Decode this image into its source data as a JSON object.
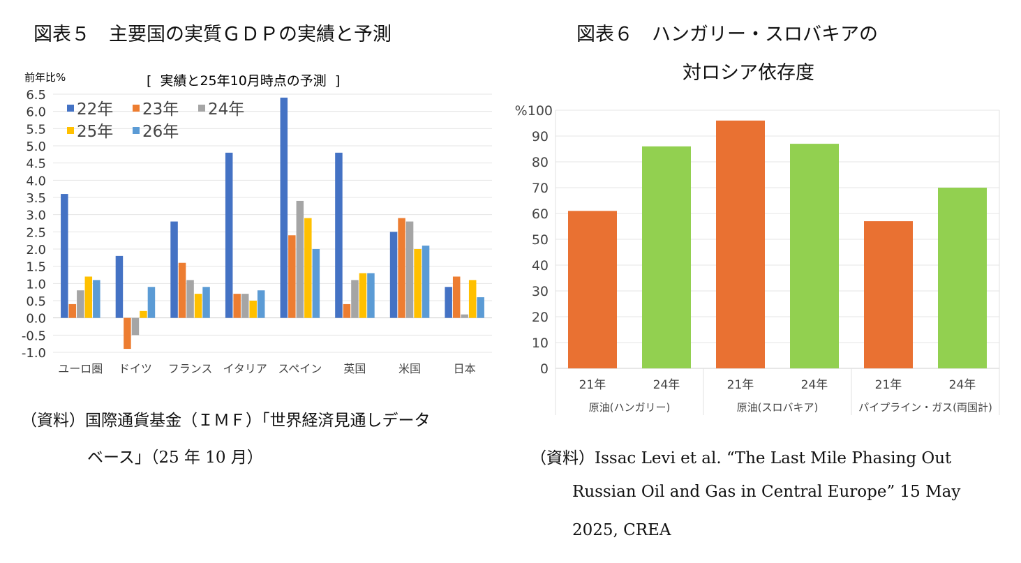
{
  "left": {
    "title": "図表５　主要国の実質ＧＤＰの実績と予測",
    "source_lines": [
      "（資料）国際通貨基金（ＩＭＦ）「世界経済見通しデータ",
      "ベース」（25 年 10 月）"
    ]
  },
  "right": {
    "title_lines": [
      "図表６　ハンガリー・スロバキアの",
      "対ロシア依存度"
    ],
    "source_lines": [
      "（資料）Issac Levi et al. “The Last Mile Phasing Out",
      "Russian Oil and Gas in Central Europe” 15 May",
      "2025, CREA"
    ]
  },
  "chart_data": [
    {
      "type": "bar",
      "title": "",
      "subtitle": "[ 実績と25年10月時点の予測 ]",
      "ylabel": "前年比%",
      "xlabel": "",
      "ylim": [
        -1.0,
        6.5
      ],
      "yticks": [
        "-1.0",
        "-0.5",
        "0.0",
        "0.5",
        "1.0",
        "1.5",
        "2.0",
        "2.5",
        "3.0",
        "3.5",
        "4.0",
        "4.5",
        "5.0",
        "5.5",
        "6.0",
        "6.5"
      ],
      "grid": true,
      "legend": "top-left",
      "categories": [
        "ユーロ圏",
        "ドイツ",
        "フランス",
        "イタリア",
        "スペイン",
        "英国",
        "米国",
        "日本"
      ],
      "series": [
        {
          "name": "22年",
          "color": "#4472c4",
          "values": [
            3.6,
            1.8,
            2.8,
            4.8,
            6.4,
            4.8,
            2.5,
            0.9
          ]
        },
        {
          "name": "23年",
          "color": "#ed7d31",
          "values": [
            0.4,
            -0.9,
            1.6,
            0.7,
            2.4,
            0.4,
            2.9,
            1.2
          ]
        },
        {
          "name": "24年",
          "color": "#a5a5a5",
          "values": [
            0.8,
            -0.5,
            1.1,
            0.7,
            3.4,
            1.1,
            2.8,
            0.1
          ]
        },
        {
          "name": "25年",
          "color": "#ffc000",
          "values": [
            1.2,
            0.2,
            0.7,
            0.5,
            2.9,
            1.3,
            2.0,
            1.1
          ]
        },
        {
          "name": "26年",
          "color": "#5b9bd5",
          "values": [
            1.1,
            0.9,
            0.9,
            0.8,
            2.0,
            1.3,
            2.1,
            0.6
          ]
        }
      ]
    },
    {
      "type": "bar",
      "title": "",
      "ylabel": "%",
      "ylim": [
        0,
        100
      ],
      "yticks": [
        "0",
        "10",
        "20",
        "30",
        "40",
        "50",
        "60",
        "70",
        "80",
        "90",
        "100"
      ],
      "grid": true,
      "groups": [
        "原油(ハンガリー)",
        "原油(スロバキア)",
        "パイプライン・ガス(両国計)"
      ],
      "categories": [
        "21年",
        "24年",
        "21年",
        "24年",
        "21年",
        "24年"
      ],
      "values": [
        61,
        86,
        96,
        87,
        57,
        70
      ],
      "colors": [
        "#e97132",
        "#92d050",
        "#e97132",
        "#92d050",
        "#e97132",
        "#92d050"
      ]
    }
  ]
}
